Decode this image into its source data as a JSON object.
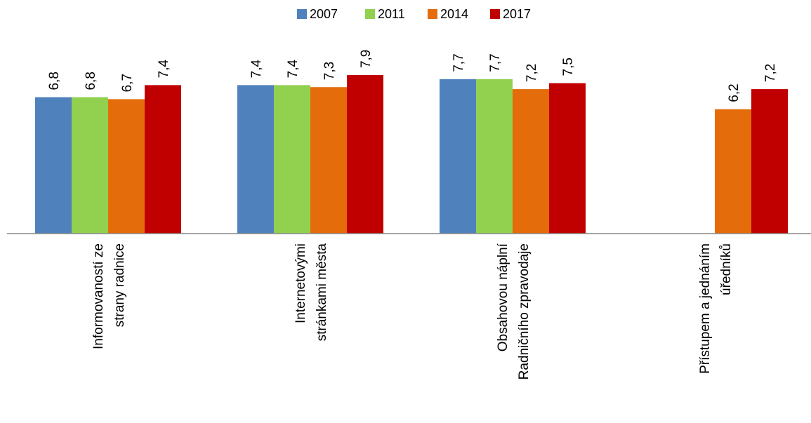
{
  "chart_data": {
    "type": "bar",
    "categories": [
      [
        "Informovaností ze",
        "strany radnice"
      ],
      [
        "Internetovými",
        "stránkami města"
      ],
      [
        "Obsahovou náplní",
        "Radničního zpravodaje"
      ],
      [
        "Přístupem a jednáním",
        "úředníků"
      ]
    ],
    "series": [
      {
        "name": "2007",
        "color": "#4F81BD",
        "values": [
          6.8,
          7.4,
          7.7,
          null
        ],
        "labels": [
          "6,8",
          "7,4",
          "7,7",
          ""
        ]
      },
      {
        "name": "2011",
        "color": "#92D050",
        "values": [
          6.8,
          7.4,
          7.7,
          null
        ],
        "labels": [
          "6,8",
          "7,4",
          "7,7",
          ""
        ]
      },
      {
        "name": "2014",
        "color": "#E46C0A",
        "values": [
          6.7,
          7.3,
          7.2,
          6.2
        ],
        "labels": [
          "6,7",
          "7,3",
          "7,2",
          "6,2"
        ]
      },
      {
        "name": "2017",
        "color": "#C00000",
        "values": [
          7.4,
          7.9,
          7.5,
          7.2
        ],
        "labels": [
          "7,4",
          "7,9",
          "7,5",
          "7,2"
        ]
      }
    ],
    "title": "",
    "xlabel": "",
    "ylabel": "",
    "ylim": [
      0,
      10
    ],
    "grid": false,
    "legend_position": "top-center",
    "data_labels_rotated": true,
    "category_labels_rotated": true
  }
}
